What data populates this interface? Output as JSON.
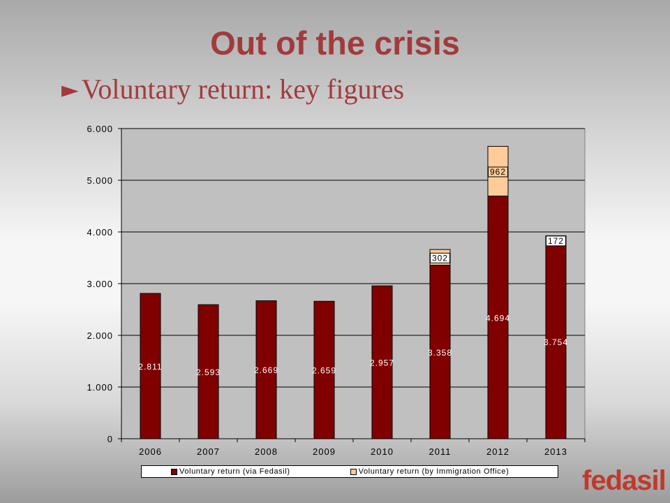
{
  "slide": {
    "title": "Out of the crisis",
    "subtitle": "Voluntary return: key figures",
    "bullet_icon": "right-triangle-bullet-icon",
    "logo_text": "fedasil"
  },
  "colors": {
    "title": "#a23a3c",
    "plot_bg": "#c0c0c0",
    "fedasil_bar": "#800000",
    "immigration_bar": "#ffcc99",
    "logo": "#c0392b"
  },
  "chart_data": {
    "type": "bar",
    "stacked": true,
    "categories": [
      "2006",
      "2007",
      "2008",
      "2009",
      "2010",
      "2011",
      "2012",
      "2013"
    ],
    "series": [
      {
        "name": "Voluntary return (via Fedasil)",
        "values": [
          2811,
          2593,
          2669,
          2659,
          2957,
          3358,
          4694,
          3754
        ],
        "labels": [
          "2.811",
          "2.593",
          "2.669",
          "2.659",
          "2.957",
          "3.358",
          "4.694",
          "3.754"
        ],
        "color": "#800000"
      },
      {
        "name": "Voluntary return (by Immigration Office)",
        "values": [
          0,
          0,
          0,
          0,
          0,
          302,
          962,
          172
        ],
        "labels": [
          "",
          "",
          "",
          "",
          "",
          "302",
          "962",
          "172"
        ],
        "color": "#ffcc99"
      }
    ],
    "y_ticks": [
      0,
      1000,
      2000,
      3000,
      4000,
      5000,
      6000
    ],
    "y_tick_labels": [
      "0",
      "1.000",
      "2.000",
      "3.000",
      "4.000",
      "5.000",
      "6.000"
    ],
    "ylim": [
      0,
      6000
    ],
    "grid": true,
    "legend_position": "bottom"
  }
}
